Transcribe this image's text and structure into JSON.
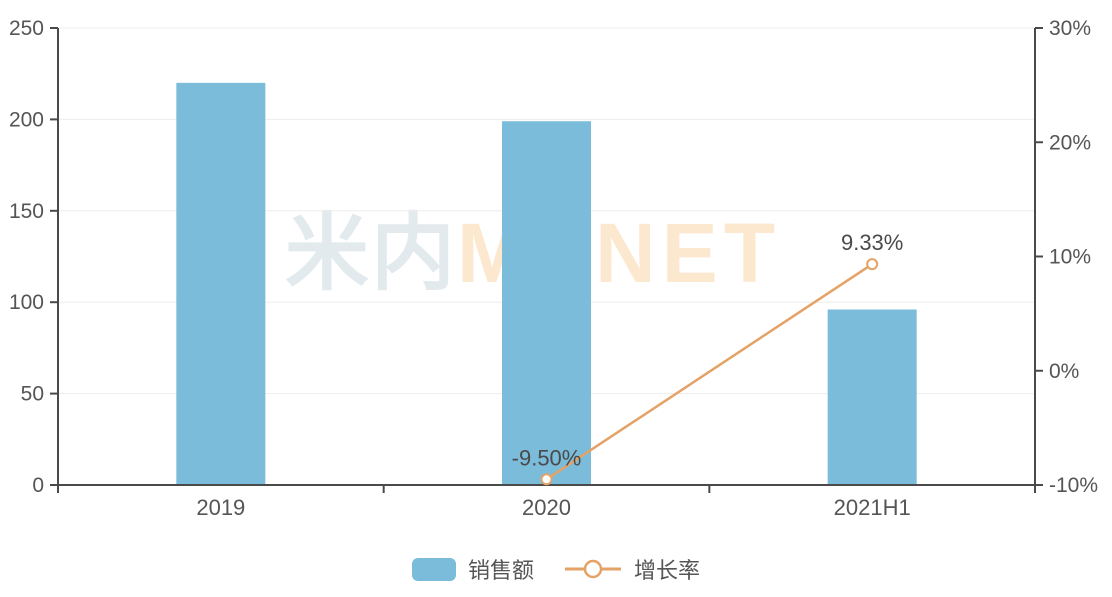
{
  "chart_data": {
    "type": "bar+line combo",
    "categories": [
      "2019",
      "2020",
      "2021H1"
    ],
    "series": [
      {
        "name": "销售额",
        "type": "bar",
        "axis": "left",
        "values": [
          220,
          199,
          96
        ]
      },
      {
        "name": "增长率",
        "type": "line",
        "axis": "right",
        "values": [
          null,
          -9.5,
          9.33
        ],
        "point_labels": [
          null,
          "-9.50%",
          "9.33%"
        ]
      }
    ],
    "left_axis": {
      "min": 0,
      "max": 250,
      "tick_values": [
        0,
        50,
        100,
        150,
        200,
        250
      ],
      "tick_labels": [
        "0",
        "50",
        "100",
        "150",
        "200",
        "250"
      ]
    },
    "right_axis": {
      "min": -10,
      "max": 30,
      "tick_values": [
        -10,
        0,
        10,
        20,
        30
      ],
      "tick_labels": [
        "-10%",
        "0%",
        "10%",
        "20%",
        "30%"
      ]
    },
    "grid": true,
    "legend_position": "bottom"
  },
  "legend": {
    "bar_label": "销售额",
    "line_label": "增长率"
  },
  "watermark": {
    "cn": "米内",
    "en": "MENET"
  },
  "colors": {
    "bar": "#7bbcda",
    "line": "#e5a266",
    "marker_fill": "#ffffff",
    "axis": "#4a4a4a",
    "grid": "#ededed",
    "tick_text": "#555555",
    "data_label": "#4a4a4a"
  }
}
